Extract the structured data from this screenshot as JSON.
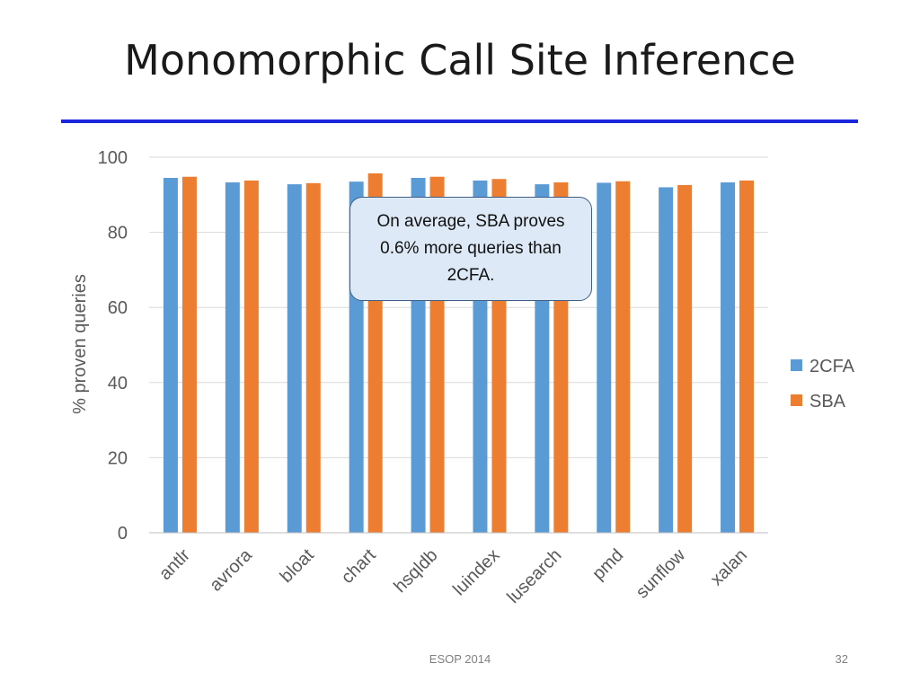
{
  "slide": {
    "title": "Monomorphic Call Site Inference",
    "rule_color": "#1a26d9",
    "callout": "On average, SBA proves 0.6% more queries than 2CFA.",
    "footer": "ESOP 2014",
    "page_number": "32"
  },
  "chart_data": {
    "type": "bar",
    "categories": [
      "antlr",
      "avrora",
      "bloat",
      "chart",
      "hsqldb",
      "luindex",
      "lusearch",
      "pmd",
      "sunflow",
      "xalan"
    ],
    "series": [
      {
        "name": "2CFA",
        "color": "#5b9bd5",
        "values": [
          94.5,
          93.3,
          92.8,
          93.5,
          94.5,
          93.8,
          92.8,
          93.2,
          92.0,
          93.3
        ]
      },
      {
        "name": "SBA",
        "color": "#ed7d31",
        "values": [
          94.8,
          93.8,
          93.1,
          95.7,
          94.8,
          94.2,
          93.3,
          93.6,
          92.6,
          93.8
        ]
      }
    ],
    "ylabel": "% proven queries",
    "ylim": [
      0,
      100
    ],
    "yticks": [
      0,
      20,
      40,
      60,
      80,
      100
    ],
    "grid": true,
    "legend": "right"
  }
}
